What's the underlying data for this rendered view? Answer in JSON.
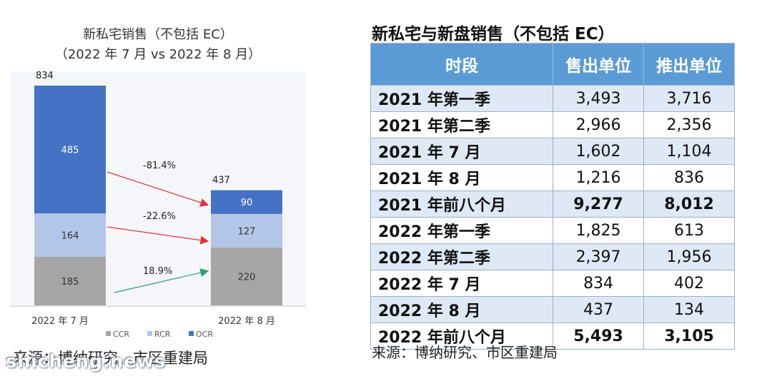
{
  "chart_data": {
    "type": "bar",
    "stacked": true,
    "title": "新私宅销售（不包括 EC）",
    "subtitle": "（2022 年 7 月 vs 2022 年 8 月）",
    "categories": [
      "2022 年 7 月",
      "2022 年 8 月"
    ],
    "series": [
      {
        "name": "CCR",
        "values": [
          185,
          220
        ],
        "color": "#a6a6a6"
      },
      {
        "name": "RCR",
        "values": [
          164,
          127
        ],
        "color": "#b4c6e7"
      },
      {
        "name": "OCR",
        "values": [
          485,
          90
        ],
        "color": "#4472c4"
      }
    ],
    "totals": [
      "834",
      "437"
    ],
    "value_labels": [
      [
        "185",
        "164",
        "485"
      ],
      [
        "220",
        "127",
        "90"
      ]
    ],
    "change_labels": [
      "-81.4%",
      "-22.6%",
      "18.9%"
    ],
    "change_values": [
      -81.4,
      -22.6,
      18.9
    ],
    "legend_position": "bottom",
    "ylim": [
      0,
      900
    ],
    "grid": false
  },
  "source_left": "来源：博纳研究、市区重建局",
  "watermark": "shicheng.news",
  "table": {
    "title": "新私宅与新盘销售（不包括 EC）",
    "headers": [
      "时段",
      "售出单位",
      "推出单位"
    ],
    "rows": [
      {
        "period": "2021 年第一季",
        "sold": "3,493",
        "launched": "3,716",
        "bold": false
      },
      {
        "period": "2021 年第二季",
        "sold": "2,966",
        "launched": "2,356",
        "bold": false
      },
      {
        "period": "2021 年 7 月",
        "sold": "1,602",
        "launched": "1,104",
        "bold": false
      },
      {
        "period": "2021 年 8 月",
        "sold": "1,216",
        "launched": "836",
        "bold": false
      },
      {
        "period": "2021 年前八个月",
        "sold": "9,277",
        "launched": "8,012",
        "bold": true
      },
      {
        "period": "2022 年第一季",
        "sold": "1,825",
        "launched": "613",
        "bold": false
      },
      {
        "period": "2022 年第二季",
        "sold": "2,397",
        "launched": "1,956",
        "bold": false
      },
      {
        "period": "2022 年 7 月",
        "sold": "834",
        "launched": "402",
        "bold": false
      },
      {
        "period": "2022 年 8 月",
        "sold": "437",
        "launched": "134",
        "bold": false
      },
      {
        "period": "2022 年前八个月",
        "sold": "5,493",
        "launched": "3,105",
        "bold": true
      }
    ],
    "source": "来源：博纳研究、市区重建局"
  }
}
